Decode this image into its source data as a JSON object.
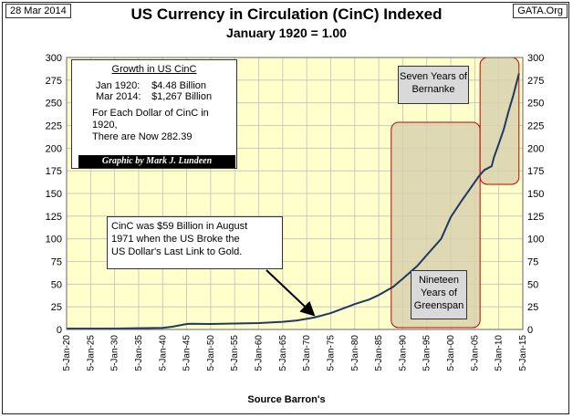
{
  "header": {
    "date": "28 Mar 2014",
    "source_logo": "GATA.Org",
    "title": "US Currency in Circulation (CinC) Indexed",
    "subtitle": "January 1920  =  1.00"
  },
  "info_box": {
    "heading": "Growth  in US CinC",
    "row1_label": "Jan 1920:",
    "row1_value": "$4.48 Billion",
    "row2_label": "Mar 2014:",
    "row2_value": "$1,267 Billion",
    "note_line1": "For Each Dollar of CinC in 1920,",
    "note_line2": "There are Now 282.39",
    "credit": "Graphic by Mark J. Lundeen"
  },
  "annotations": {
    "callout_1971_line1": "CinC was $59 Billion in August",
    "callout_1971_line2": "1971 when the US Broke the",
    "callout_1971_line3": "US Dollar's Last Link to Gold.",
    "greenspan_line1": "Nineteen",
    "greenspan_line2": "Years of",
    "greenspan_line3": "Greenspan",
    "bernanke_line1": "Seven Years of",
    "bernanke_line2": "Bernanke"
  },
  "colors": {
    "plot_bg": "#FFFFCC",
    "grid": "#BFBFBF",
    "line": "#1F3864",
    "highlight_fill": "#D8D1AE",
    "highlight_border": "#C00000"
  },
  "chart_data": {
    "type": "line",
    "title": "US Currency in Circulation (CinC) Indexed",
    "subtitle": "January 1920  =  1.00",
    "xlabel": "Source Barron's",
    "ylabel": "",
    "ylim": [
      0,
      300
    ],
    "xlim": [
      1920,
      2015
    ],
    "yticks": [
      "0",
      "25",
      "50",
      "75",
      "100",
      "125",
      "150",
      "175",
      "200",
      "225",
      "250",
      "275",
      "300"
    ],
    "xticks": [
      "5-Jan-20",
      "5-Jan-25",
      "5-Jan-30",
      "5-Jan-35",
      "5-Jan-40",
      "5-Jan-45",
      "5-Jan-50",
      "5-Jan-55",
      "5-Jan-60",
      "5-Jan-65",
      "5-Jan-70",
      "5-Jan-75",
      "5-Jan-80",
      "5-Jan-85",
      "5-Jan-90",
      "5-Jan-95",
      "5-Jan-00",
      "5-Jan-05",
      "5-Jan-10",
      "5-Jan-15"
    ],
    "grid": true,
    "dual_y_axis": true,
    "series": [
      {
        "x": [
          1920,
          1925,
          1930,
          1933,
          1935,
          1940,
          1942,
          1944,
          1945,
          1946,
          1950,
          1955,
          1960,
          1965,
          1968,
          1971.6,
          1975,
          1980,
          1983,
          1985,
          1988,
          1990,
          1993,
          1995,
          1998,
          1999.5,
          2000,
          2002,
          2004,
          2006,
          2007,
          2008.5,
          2009,
          2010,
          2011,
          2012,
          2013,
          2014.2
        ],
        "y": [
          1.0,
          1.0,
          1.0,
          1.3,
          1.4,
          1.8,
          3.0,
          5.0,
          6.0,
          6.2,
          6.0,
          6.5,
          7.0,
          8.5,
          10.0,
          13.2,
          18.0,
          28.0,
          33.0,
          38.0,
          47.0,
          56.0,
          70.0,
          82.0,
          100.0,
          118.0,
          124.0,
          140.0,
          155.0,
          170.0,
          176.0,
          180.0,
          190.0,
          205.0,
          220.0,
          240.0,
          258.0,
          282.39
        ]
      }
    ],
    "highlight_regions": [
      {
        "label": "Nineteen Years of Greenspan",
        "x_start": 1987.6,
        "x_end": 2006.1
      },
      {
        "label": "Seven Years of Bernanke",
        "x_start": 2006.1,
        "x_end": 2014.2
      }
    ],
    "annotation": {
      "text": "CinC was $59 Billion in August 1971 when the US Broke the US Dollar's Last Link to Gold.",
      "x": 1971.6,
      "y": 13.2
    }
  }
}
